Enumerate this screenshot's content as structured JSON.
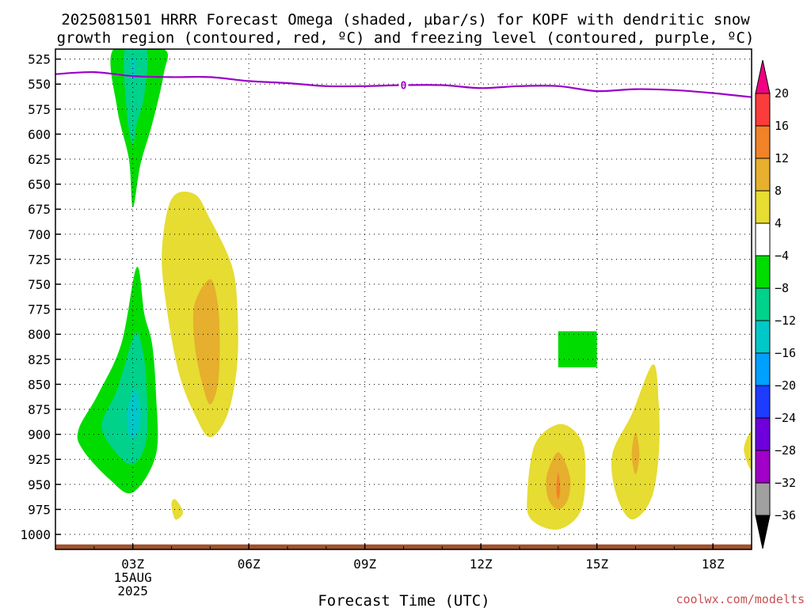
{
  "title": {
    "line1": "2025081501 HRRR Forecast Omega (shaded, µbar/s) for KOPF with dendritic snow",
    "line2": "growth region (contoured, red, ºC) and freezing level (contoured, purple, ºC)"
  },
  "credit": "coolwx.com/modelts",
  "chart_data": {
    "type": "heatmap",
    "title": "2025081501 HRRR Forecast Omega (shaded, µbar/s) for KOPF with dendritic snow growth region (contoured, red, ºC) and freezing level (contoured, purple, ºC)",
    "xlabel": "Forecast Time (UTC)",
    "x_unit": "forecast hour",
    "xlim": [
      0,
      18
    ],
    "x_ticks": [
      {
        "hour": 2,
        "label": "03Z",
        "sublabel1": "15AUG",
        "sublabel2": "2025"
      },
      {
        "hour": 5,
        "label": "06Z"
      },
      {
        "hour": 8,
        "label": "09Z"
      },
      {
        "hour": 11,
        "label": "12Z"
      },
      {
        "hour": 14,
        "label": "15Z"
      },
      {
        "hour": 17,
        "label": "18Z"
      }
    ],
    "ylabel": "",
    "y_unit": "mb",
    "ylim": [
      1015,
      515
    ],
    "y_ticks": [
      525,
      550,
      575,
      600,
      625,
      650,
      675,
      700,
      725,
      750,
      775,
      800,
      825,
      850,
      875,
      900,
      925,
      950,
      975,
      1000
    ],
    "grid": true,
    "colorbar": {
      "levels": [
        -36,
        -32,
        -28,
        -24,
        -20,
        -16,
        -12,
        -8,
        -4,
        4,
        8,
        12,
        16,
        20
      ],
      "labels": [
        "20",
        "16",
        "12",
        "8",
        "4",
        "−4",
        "−8",
        "−12",
        "−16",
        "−20",
        "−24",
        "−28",
        "−32",
        "−36"
      ],
      "bins": [
        {
          "range": "< -36",
          "color": "#000000"
        },
        {
          "range": "-36 to -32",
          "color": "#a0a0a0"
        },
        {
          "range": "-32 to -28",
          "color": "#a000c8"
        },
        {
          "range": "-28 to -24",
          "color": "#6e00dc"
        },
        {
          "range": "-24 to -20",
          "color": "#1e3cff"
        },
        {
          "range": "-20 to -16",
          "color": "#00a0ff"
        },
        {
          "range": "-16 to -12",
          "color": "#00c8c8"
        },
        {
          "range": "-12 to -8",
          "color": "#00d28c"
        },
        {
          "range": "-8 to -4",
          "color": "#00dc00"
        },
        {
          "range": "-4 to 4",
          "color": "#ffffff"
        },
        {
          "range": "4 to 8",
          "color": "#e6dc32"
        },
        {
          "range": "8 to 12",
          "color": "#e6af2d"
        },
        {
          "range": "12 to 16",
          "color": "#f08228"
        },
        {
          "range": "16 to 20",
          "color": "#fa3c3c"
        },
        {
          "range": "> 20",
          "color": "#f00082"
        }
      ]
    },
    "omega_regions": [
      {
        "level": "-8 to -4",
        "color": "#00dc00",
        "points": [
          [
            1.5,
            515
          ],
          [
            2.8,
            515
          ],
          [
            2.8,
            540
          ],
          [
            2.5,
            590
          ],
          [
            2.2,
            630
          ],
          [
            2.0,
            673
          ],
          [
            1.9,
            625
          ],
          [
            1.6,
            575
          ]
        ]
      },
      {
        "level": "-12 to -8",
        "color": "#00d28c",
        "points": [
          [
            1.8,
            515
          ],
          [
            2.35,
            515
          ],
          [
            2.3,
            560
          ],
          [
            2.1,
            590
          ],
          [
            2.0,
            610
          ],
          [
            1.85,
            580
          ]
        ]
      },
      {
        "level": "-16 to -12",
        "color": "#00c8c8",
        "points": [
          [
            1.95,
            525
          ],
          [
            2.05,
            525
          ],
          [
            2.05,
            545
          ],
          [
            1.95,
            545
          ]
        ]
      },
      {
        "level": "-8 to -4",
        "color": "#00dc00",
        "points": [
          [
            2.1,
            733
          ],
          [
            1.7,
            810
          ],
          [
            1.1,
            860
          ],
          [
            0.6,
            895
          ],
          [
            0.7,
            915
          ],
          [
            1.4,
            945
          ],
          [
            2.0,
            958
          ],
          [
            2.6,
            920
          ],
          [
            2.6,
            860
          ],
          [
            2.5,
            810
          ],
          [
            2.3,
            780
          ]
        ]
      },
      {
        "level": "-12 to -8",
        "color": "#00d28c",
        "points": [
          [
            2.05,
            800
          ],
          [
            1.6,
            855
          ],
          [
            1.2,
            890
          ],
          [
            1.5,
            915
          ],
          [
            2.0,
            930
          ],
          [
            2.35,
            905
          ],
          [
            2.35,
            850
          ],
          [
            2.25,
            815
          ]
        ]
      },
      {
        "level": "-16 to -12",
        "color": "#00c8c8",
        "points": [
          [
            2.05,
            855
          ],
          [
            1.85,
            880
          ],
          [
            1.95,
            905
          ],
          [
            2.15,
            895
          ],
          [
            2.2,
            875
          ]
        ]
      },
      {
        "level": "4 to 8",
        "color": "#e6dc32",
        "points": [
          [
            3.0,
            665
          ],
          [
            2.75,
            720
          ],
          [
            2.9,
            780
          ],
          [
            3.2,
            840
          ],
          [
            3.6,
            880
          ],
          [
            4.0,
            903
          ],
          [
            4.45,
            880
          ],
          [
            4.7,
            830
          ],
          [
            4.7,
            770
          ],
          [
            4.55,
            730
          ],
          [
            4.0,
            685
          ],
          [
            3.6,
            660
          ]
        ]
      },
      {
        "level": "8 to 12",
        "color": "#e6af2d",
        "points": [
          [
            4.0,
            745
          ],
          [
            3.6,
            770
          ],
          [
            3.6,
            810
          ],
          [
            3.8,
            850
          ],
          [
            4.0,
            870
          ],
          [
            4.2,
            850
          ],
          [
            4.25,
            810
          ],
          [
            4.2,
            770
          ]
        ]
      },
      {
        "level": "4 to 8",
        "color": "#e6dc32",
        "points": [
          [
            3.0,
            970
          ],
          [
            3.1,
            985
          ],
          [
            3.3,
            978
          ],
          [
            3.1,
            965
          ]
        ]
      },
      {
        "level": "4 to 8",
        "color": "#e6dc32",
        "points": [
          [
            13.0,
            890
          ],
          [
            12.4,
            910
          ],
          [
            12.2,
            960
          ],
          [
            12.3,
            985
          ],
          [
            13.0,
            995
          ],
          [
            13.6,
            975
          ],
          [
            13.7,
            925
          ],
          [
            13.5,
            900
          ]
        ]
      },
      {
        "level": "8 to 12",
        "color": "#e6af2d",
        "points": [
          [
            13.0,
            918
          ],
          [
            12.7,
            942
          ],
          [
            12.75,
            965
          ],
          [
            13.0,
            975
          ],
          [
            13.25,
            965
          ],
          [
            13.3,
            942
          ]
        ]
      },
      {
        "level": "12 to 16",
        "color": "#f08228",
        "points": [
          [
            13.0,
            938
          ],
          [
            12.95,
            955
          ],
          [
            13.0,
            965
          ],
          [
            13.05,
            955
          ]
        ]
      },
      {
        "level": "-8 to -4",
        "color": "#00dc00",
        "points": [
          [
            13.0,
            797
          ],
          [
            14.0,
            797
          ],
          [
            14.0,
            833
          ],
          [
            13.0,
            833
          ]
        ]
      },
      {
        "level": "4 to 8",
        "color": "#e6dc32",
        "points": [
          [
            15.45,
            830
          ],
          [
            14.9,
            880
          ],
          [
            14.4,
            920
          ],
          [
            14.5,
            960
          ],
          [
            14.9,
            985
          ],
          [
            15.4,
            965
          ],
          [
            15.6,
            920
          ],
          [
            15.6,
            870
          ]
        ]
      },
      {
        "level": "8 to 12",
        "color": "#e6af2d",
        "points": [
          [
            15.0,
            898
          ],
          [
            14.9,
            920
          ],
          [
            15.0,
            940
          ],
          [
            15.1,
            920
          ]
        ]
      },
      {
        "level": "4 to 8",
        "color": "#e6dc32",
        "points": [
          [
            18.0,
            898
          ],
          [
            17.8,
            915
          ],
          [
            18.0,
            935
          ]
        ]
      }
    ],
    "freezing_level": {
      "color": "#9b00c8",
      "label": "0",
      "label_hour": 9,
      "points": [
        [
          0,
          540
        ],
        [
          1,
          538
        ],
        [
          2,
          542
        ],
        [
          3,
          543
        ],
        [
          4,
          543
        ],
        [
          5,
          547
        ],
        [
          6,
          549
        ],
        [
          7,
          552
        ],
        [
          8,
          552
        ],
        [
          9,
          551
        ],
        [
          10,
          551
        ],
        [
          11,
          554
        ],
        [
          12,
          552
        ],
        [
          13,
          552
        ],
        [
          14,
          557
        ],
        [
          15,
          555
        ],
        [
          16,
          556
        ],
        [
          17,
          559
        ],
        [
          18,
          563
        ]
      ]
    },
    "surface_terrain": {
      "color": "#a0522d",
      "top_mb": 1010
    }
  }
}
